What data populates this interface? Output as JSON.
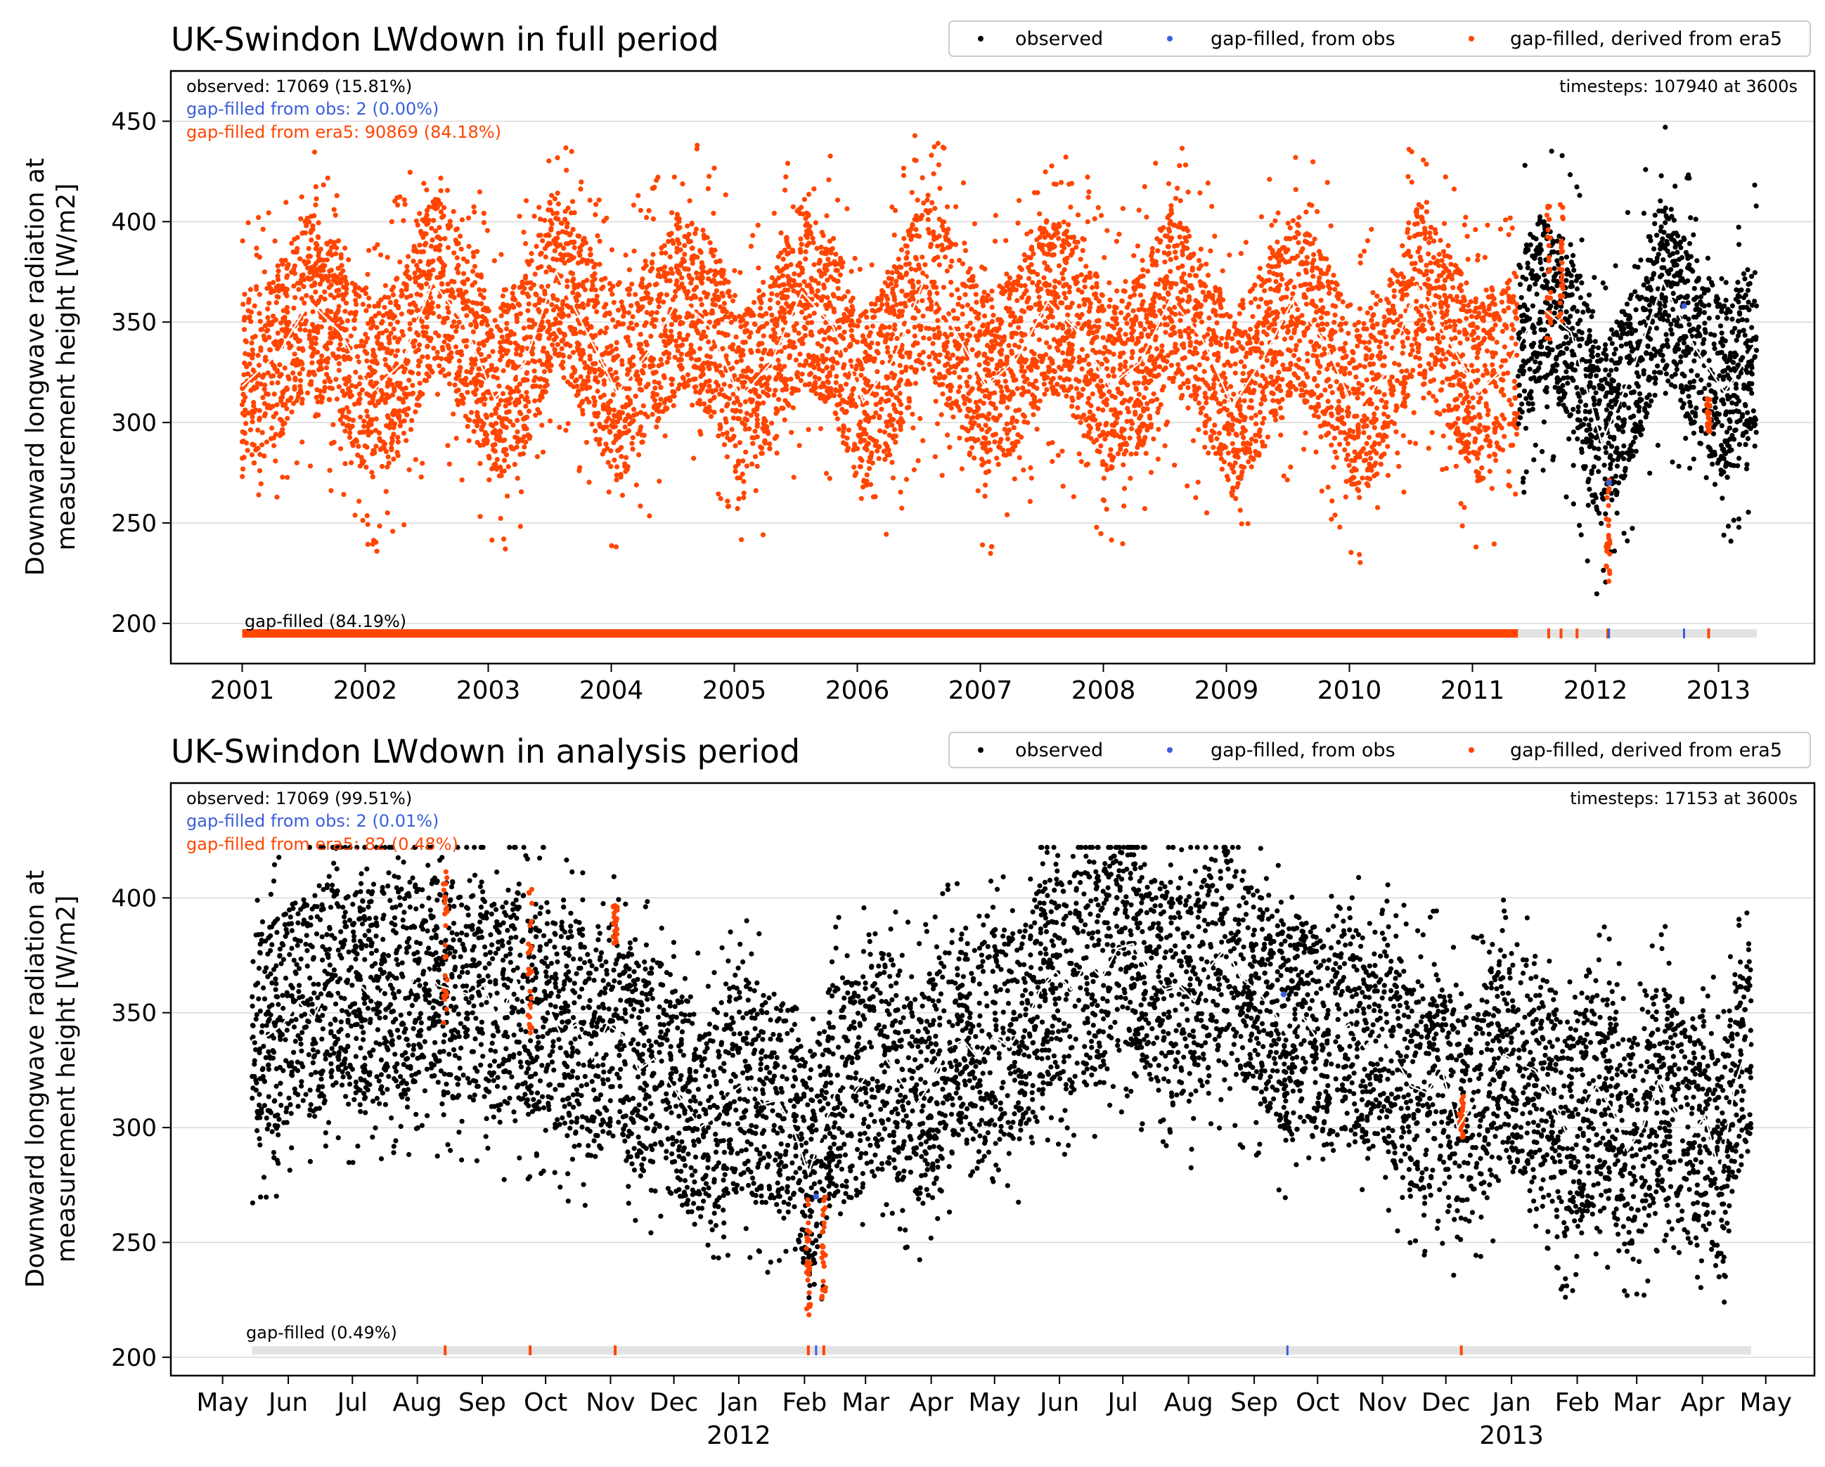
{
  "colors": {
    "observed": "#000000",
    "gapfilled_obs": "#3a5fd9",
    "gapfilled_era5": "#ff4500",
    "mean_line": "#ffffff",
    "gap_bar_bg": "#e3e3e3",
    "grid": "#d9d9d9"
  },
  "legend": {
    "observed": "observed",
    "gapfilled_obs": "gap-filled, from obs",
    "gapfilled_era5": "gap-filled, derived from era5"
  },
  "ylabel_line1": "Downward longwave radiation at",
  "ylabel_line2": "measurement height [W/m2]",
  "chart_data": [
    {
      "type": "scatter",
      "title": "UK-Swindon LWdown in full period",
      "ylim": [
        180,
        475
      ],
      "yticks": [
        200,
        250,
        300,
        350,
        400,
        450
      ],
      "xlim": [
        2000.42,
        2013.78
      ],
      "xticks": [
        {
          "x": 2001,
          "label": "2001"
        },
        {
          "x": 2002,
          "label": "2002"
        },
        {
          "x": 2003,
          "label": "2003"
        },
        {
          "x": 2004,
          "label": "2004"
        },
        {
          "x": 2005,
          "label": "2005"
        },
        {
          "x": 2006,
          "label": "2006"
        },
        {
          "x": 2007,
          "label": "2007"
        },
        {
          "x": 2008,
          "label": "2008"
        },
        {
          "x": 2009,
          "label": "2009"
        },
        {
          "x": 2010,
          "label": "2010"
        },
        {
          "x": 2011,
          "label": "2011"
        },
        {
          "x": 2012,
          "label": "2012"
        },
        {
          "x": 2013,
          "label": "2013"
        }
      ],
      "year_labels": [],
      "stats": {
        "observed": "observed: 17069 (15.81%)",
        "gapfilled_obs": "gap-filled from obs: 2 (0.00%)",
        "gapfilled_era5": "gap-filled from era5: 90869 (84.18%)",
        "timesteps": "timesteps: 107940 at 3600s",
        "gap_label": "gap-filled (84.19%)"
      },
      "grid": true,
      "legend_position": "top-right",
      "obs_start": 2011.37,
      "end": 2013.31,
      "gap_bar_y": 195,
      "gap_bar_range": [
        2001.0,
        2013.31
      ],
      "gap_fill_solid": [
        2001.0,
        2011.37
      ],
      "gap_ticks_era5": [
        2011.62,
        2011.72,
        2011.85,
        2012.1,
        2012.92
      ],
      "gap_ticks_obs": [
        2012.11,
        2012.72
      ],
      "envelope": {
        "base": 320,
        "amp": 30,
        "min_offset": -70,
        "max_offset": 75,
        "peak_phase": 0.55
      },
      "mean_line": [
        [
          2001.0,
          318
        ],
        [
          2001.3,
          335
        ],
        [
          2001.55,
          360
        ],
        [
          2001.8,
          345
        ],
        [
          2002.05,
          315
        ],
        [
          2002.3,
          330
        ],
        [
          2002.55,
          370
        ],
        [
          2002.8,
          350
        ],
        [
          2003.05,
          312
        ],
        [
          2003.3,
          330
        ],
        [
          2003.55,
          375
        ],
        [
          2003.8,
          345
        ],
        [
          2004.05,
          315
        ],
        [
          2004.3,
          335
        ],
        [
          2004.55,
          362
        ],
        [
          2004.8,
          348
        ],
        [
          2005.05,
          312
        ],
        [
          2005.3,
          330
        ],
        [
          2005.55,
          365
        ],
        [
          2005.8,
          348
        ],
        [
          2006.05,
          310
        ],
        [
          2006.3,
          332
        ],
        [
          2006.55,
          372
        ],
        [
          2006.8,
          345
        ],
        [
          2007.05,
          318
        ],
        [
          2007.3,
          332
        ],
        [
          2007.55,
          360
        ],
        [
          2007.8,
          345
        ],
        [
          2008.05,
          318
        ],
        [
          2008.3,
          330
        ],
        [
          2008.55,
          362
        ],
        [
          2008.8,
          342
        ],
        [
          2009.05,
          308
        ],
        [
          2009.3,
          332
        ],
        [
          2009.55,
          362
        ],
        [
          2009.8,
          340
        ],
        [
          2010.05,
          305
        ],
        [
          2010.3,
          325
        ],
        [
          2010.55,
          368
        ],
        [
          2010.8,
          342
        ],
        [
          2011.05,
          315
        ],
        [
          2011.3,
          330
        ],
        [
          2011.55,
          358
        ],
        [
          2011.8,
          345
        ],
        [
          2012.05,
          290
        ],
        [
          2012.3,
          325
        ],
        [
          2012.55,
          370
        ],
        [
          2012.8,
          338
        ],
        [
          2013.05,
          315
        ],
        [
          2013.31,
          340
        ]
      ],
      "era5_in_obs": [
        {
          "x": 2011.62,
          "lo": 340,
          "hi": 412
        },
        {
          "x": 2011.72,
          "lo": 345,
          "hi": 410
        },
        {
          "x": 2012.1,
          "lo": 220,
          "hi": 272
        },
        {
          "x": 2012.92,
          "lo": 295,
          "hi": 312
        }
      ],
      "obs_fill_points": [
        {
          "x": 2012.11,
          "y": 270
        },
        {
          "x": 2012.72,
          "y": 358
        }
      ]
    },
    {
      "type": "scatter",
      "title": "UK-Swindon LWdown in analysis period",
      "ylim": [
        192,
        450
      ],
      "yticks": [
        200,
        250,
        300,
        350,
        400
      ],
      "xlim": [
        2011.265,
        2013.392
      ],
      "xticks": [
        {
          "x": 2011.332,
          "label": "May"
        },
        {
          "x": 2011.417,
          "label": "Jun"
        },
        {
          "x": 2011.5,
          "label": "Jul"
        },
        {
          "x": 2011.584,
          "label": "Aug"
        },
        {
          "x": 2011.668,
          "label": "Sep"
        },
        {
          "x": 2011.75,
          "label": "Oct"
        },
        {
          "x": 2011.834,
          "label": "Nov"
        },
        {
          "x": 2011.916,
          "label": "Dec"
        },
        {
          "x": 2012.0,
          "label": "Jan"
        },
        {
          "x": 2012.085,
          "label": "Feb"
        },
        {
          "x": 2012.164,
          "label": "Mar"
        },
        {
          "x": 2012.249,
          "label": "Apr"
        },
        {
          "x": 2012.331,
          "label": "May"
        },
        {
          "x": 2012.415,
          "label": "Jun"
        },
        {
          "x": 2012.497,
          "label": "Jul"
        },
        {
          "x": 2012.582,
          "label": "Aug"
        },
        {
          "x": 2012.667,
          "label": "Sep"
        },
        {
          "x": 2012.749,
          "label": "Oct"
        },
        {
          "x": 2012.833,
          "label": "Nov"
        },
        {
          "x": 2012.915,
          "label": "Dec"
        },
        {
          "x": 2013.0,
          "label": "Jan"
        },
        {
          "x": 2013.085,
          "label": "Feb"
        },
        {
          "x": 2013.162,
          "label": "Mar"
        },
        {
          "x": 2013.247,
          "label": "Apr"
        },
        {
          "x": 2013.329,
          "label": "May"
        }
      ],
      "year_labels": [
        {
          "x": 2012.0,
          "label": "2012"
        },
        {
          "x": 2013.0,
          "label": "2013"
        }
      ],
      "stats": {
        "observed": "observed: 17069 (99.51%)",
        "gapfilled_obs": "gap-filled from obs: 2 (0.01%)",
        "gapfilled_era5": "gap-filled from era5: 82 (0.48%)",
        "timesteps": "timesteps: 17153 at 3600s",
        "gap_label": "gap-filled (0.49%)"
      },
      "grid": true,
      "legend_position": "top-right",
      "obs_start": 2011.37,
      "end": 2013.31,
      "gap_bar_y": 203,
      "gap_bar_range": [
        2011.37,
        2013.31
      ],
      "gap_fill_solid": null,
      "gap_ticks_era5": [
        2011.62,
        2011.73,
        2011.84,
        2012.09,
        2012.11,
        2012.935
      ],
      "gap_ticks_obs": [
        2012.1,
        2012.71
      ],
      "mean_line": [
        [
          2011.37,
          338
        ],
        [
          2011.39,
          340
        ],
        [
          2011.41,
          345
        ],
        [
          2011.43,
          355
        ],
        [
          2011.45,
          348
        ],
        [
          2011.47,
          362
        ],
        [
          2011.49,
          352
        ],
        [
          2011.51,
          362
        ],
        [
          2011.53,
          355
        ],
        [
          2011.55,
          365
        ],
        [
          2011.57,
          358
        ],
        [
          2011.59,
          372
        ],
        [
          2011.61,
          362
        ],
        [
          2011.63,
          360
        ],
        [
          2011.65,
          358
        ],
        [
          2011.67,
          362
        ],
        [
          2011.69,
          345
        ],
        [
          2011.71,
          365
        ],
        [
          2011.73,
          350
        ],
        [
          2011.75,
          355
        ],
        [
          2011.77,
          340
        ],
        [
          2011.79,
          345
        ],
        [
          2011.81,
          330
        ],
        [
          2011.83,
          345
        ],
        [
          2011.85,
          340
        ],
        [
          2011.87,
          325
        ],
        [
          2011.89,
          330
        ],
        [
          2011.91,
          320
        ],
        [
          2011.93,
          310
        ],
        [
          2011.95,
          300
        ],
        [
          2011.97,
          305
        ],
        [
          2011.99,
          315
        ],
        [
          2012.01,
          320
        ],
        [
          2012.03,
          310
        ],
        [
          2012.05,
          312
        ],
        [
          2012.07,
          300
        ],
        [
          2012.09,
          280
        ],
        [
          2012.11,
          300
        ],
        [
          2012.13,
          320
        ],
        [
          2012.15,
          315
        ],
        [
          2012.17,
          325
        ],
        [
          2012.19,
          330
        ],
        [
          2012.21,
          320
        ],
        [
          2012.23,
          310
        ],
        [
          2012.25,
          320
        ],
        [
          2012.27,
          335
        ],
        [
          2012.29,
          338
        ],
        [
          2012.31,
          330
        ],
        [
          2012.33,
          340
        ],
        [
          2012.35,
          335
        ],
        [
          2012.37,
          345
        ],
        [
          2012.39,
          360
        ],
        [
          2012.41,
          368
        ],
        [
          2012.43,
          360
        ],
        [
          2012.45,
          372
        ],
        [
          2012.47,
          365
        ],
        [
          2012.49,
          378
        ],
        [
          2012.51,
          380
        ],
        [
          2012.53,
          368
        ],
        [
          2012.55,
          360
        ],
        [
          2012.57,
          362
        ],
        [
          2012.59,
          355
        ],
        [
          2012.61,
          370
        ],
        [
          2012.63,
          378
        ],
        [
          2012.65,
          365
        ],
        [
          2012.67,
          360
        ],
        [
          2012.69,
          352
        ],
        [
          2012.71,
          340
        ],
        [
          2012.73,
          348
        ],
        [
          2012.75,
          338
        ],
        [
          2012.77,
          340
        ],
        [
          2012.79,
          345
        ],
        [
          2012.81,
          335
        ],
        [
          2012.83,
          342
        ],
        [
          2012.85,
          330
        ],
        [
          2012.87,
          318
        ],
        [
          2012.89,
          315
        ],
        [
          2012.91,
          325
        ],
        [
          2012.93,
          300
        ],
        [
          2012.95,
          310
        ],
        [
          2012.97,
          320
        ],
        [
          2012.99,
          332
        ],
        [
          2013.01,
          328
        ],
        [
          2013.03,
          325
        ],
        [
          2013.05,
          315
        ],
        [
          2013.07,
          298
        ],
        [
          2013.09,
          305
        ],
        [
          2013.11,
          318
        ],
        [
          2013.13,
          308
        ],
        [
          2013.15,
          290
        ],
        [
          2013.17,
          300
        ],
        [
          2013.19,
          320
        ],
        [
          2013.21,
          308
        ],
        [
          2013.23,
          295
        ],
        [
          2013.25,
          305
        ],
        [
          2013.27,
          280
        ],
        [
          2013.29,
          320
        ],
        [
          2013.31,
          340
        ]
      ],
      "era5_in_obs": [
        {
          "x": 2011.62,
          "lo": 345,
          "hi": 412
        },
        {
          "x": 2011.73,
          "lo": 340,
          "hi": 406
        },
        {
          "x": 2011.84,
          "lo": 380,
          "hi": 397
        },
        {
          "x": 2012.09,
          "lo": 218,
          "hi": 270
        },
        {
          "x": 2012.11,
          "lo": 225,
          "hi": 272
        },
        {
          "x": 2012.935,
          "lo": 295,
          "hi": 315
        }
      ],
      "obs_fill_points": [
        {
          "x": 2012.1,
          "y": 270
        },
        {
          "x": 2012.705,
          "y": 358
        }
      ]
    }
  ]
}
